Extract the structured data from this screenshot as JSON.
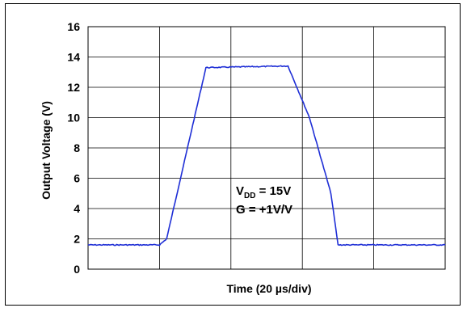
{
  "chart_data": {
    "type": "line",
    "title": "",
    "xlabel": "Time (20 µs/div)",
    "ylabel": "Output Voltage (V)",
    "ylim": [
      0,
      16
    ],
    "yticks": [
      "0",
      "2",
      "4",
      "6",
      "8",
      "10",
      "12",
      "14",
      "16"
    ],
    "x_divisions": 5,
    "x_unit_per_div": "20 µs",
    "grid": true,
    "x_values_unit": "µs",
    "series": [
      {
        "color": "#1f2fd6",
        "x": [
          0,
          20,
          22,
          33,
          55,
          56,
          62,
          68,
          70,
          84,
          100
        ],
        "y": [
          1.6,
          1.6,
          2.0,
          13.3,
          13.4,
          13.4,
          10.0,
          5.0,
          1.6,
          1.6,
          1.6
        ]
      }
    ],
    "annotations": [
      {
        "main": "V",
        "sub": "DD",
        "rest": " = 15V"
      },
      {
        "main": "G = +1V/V"
      }
    ]
  }
}
